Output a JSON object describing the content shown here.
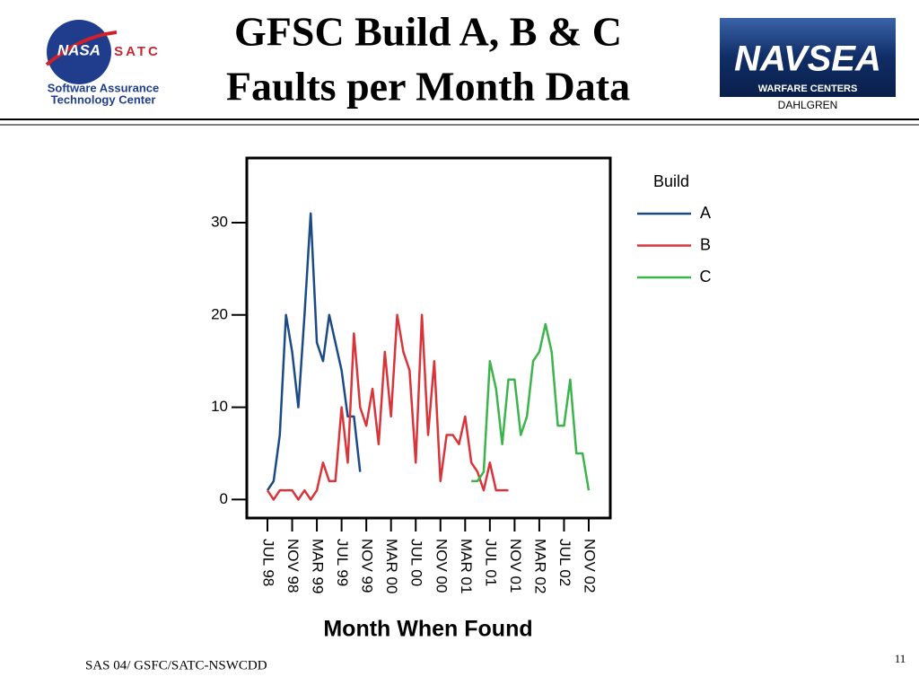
{
  "header": {
    "left_logo": {
      "emblem": "NASA",
      "name": "SATC",
      "lines": [
        "Software Assurance",
        "Technology Center"
      ]
    },
    "right_logo": {
      "name": "NAVSEA",
      "subtitle": "WARFARE CENTERS",
      "site": "DAHLGREN"
    }
  },
  "footer": {
    "text": "SAS 04/ GSFC/SATC-NSWCDD",
    "page": "11"
  },
  "chart_data": {
    "type": "line",
    "title": [
      "GFSC Build A, B & C",
      "Faults per Month Data"
    ],
    "x_label": "Month When Found",
    "legend_title": "Build",
    "categories": [
      "JUL 98",
      null,
      null,
      null,
      "NOV 98",
      null,
      null,
      null,
      "MAR 99",
      null,
      null,
      null,
      "JUL 99",
      null,
      null,
      null,
      "NOV 99",
      null,
      null,
      null,
      "MAR 00",
      null,
      null,
      null,
      "JUL 00",
      null,
      null,
      null,
      "NOV 00",
      null,
      null,
      null,
      "MAR 01",
      null,
      null,
      null,
      "JUL 01",
      null,
      null,
      null,
      "NOV 01",
      null,
      null,
      null,
      "MAR 02",
      null,
      null,
      null,
      "JUL 02",
      null,
      null,
      null,
      "NOV 02"
    ],
    "series": [
      {
        "name": "A",
        "color": "#1c4a86",
        "values": [
          1,
          2,
          7,
          20,
          16,
          10,
          20,
          31,
          17,
          15,
          20,
          17,
          14,
          9,
          9,
          3,
          null,
          null,
          null,
          null,
          null,
          null,
          null,
          null,
          null,
          null,
          null,
          null,
          null,
          null,
          null,
          null,
          null,
          null,
          null,
          null,
          null,
          null,
          null,
          null,
          null,
          null,
          null,
          null,
          null,
          null,
          null,
          null,
          null,
          null,
          null,
          null,
          null
        ]
      },
      {
        "name": "B",
        "color": "#d8343a",
        "values": [
          1,
          0,
          1,
          1,
          1,
          0,
          1,
          0,
          1,
          4,
          2,
          2,
          10,
          4,
          18,
          10,
          8,
          12,
          6,
          16,
          9,
          20,
          16,
          14,
          4,
          20,
          7,
          15,
          2,
          7,
          7,
          6,
          9,
          4,
          3,
          1,
          4,
          1,
          1,
          1,
          null,
          null,
          null,
          null,
          null,
          null,
          null,
          null,
          null,
          null,
          null,
          null,
          null
        ]
      },
      {
        "name": "C",
        "color": "#3cb44b",
        "values": [
          null,
          null,
          null,
          null,
          null,
          null,
          null,
          null,
          null,
          null,
          null,
          null,
          null,
          null,
          null,
          null,
          null,
          null,
          null,
          null,
          null,
          null,
          null,
          null,
          null,
          null,
          null,
          null,
          null,
          null,
          null,
          null,
          null,
          2,
          2,
          3,
          15,
          12,
          6,
          13,
          13,
          7,
          9,
          15,
          16,
          19,
          16,
          8,
          8,
          13,
          5,
          5,
          1
        ]
      }
    ],
    "ylim": [
      -2,
      37
    ],
    "yticks": [
      0,
      10,
      20,
      30
    ]
  }
}
